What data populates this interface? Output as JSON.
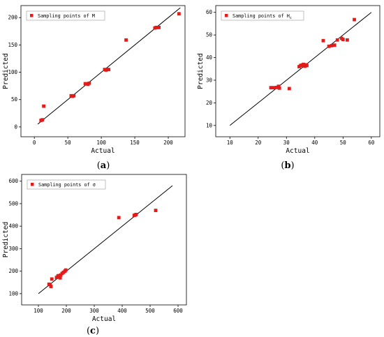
{
  "chart_data": [
    {
      "type": "scatter",
      "panel_label": "a",
      "xlabel": "Actual",
      "ylabel": "Predicted",
      "xlim": [
        -20,
        225
      ],
      "ylim": [
        -18,
        222
      ],
      "xticks": [
        0,
        50,
        100,
        150,
        200
      ],
      "yticks": [
        0,
        50,
        100,
        150,
        200
      ],
      "legend": {
        "text": "Sampling points of M",
        "position": "top-left"
      },
      "fit_line": [
        [
          5,
          5
        ],
        [
          218,
          218
        ]
      ],
      "series": [
        {
          "name": "Sampling points of M",
          "x": [
            10,
            12,
            14,
            55,
            57,
            59,
            76,
            78,
            80,
            82,
            105,
            107,
            109,
            111,
            137,
            180,
            182,
            184,
            186,
            216
          ],
          "y": [
            12,
            13,
            38,
            57,
            56,
            57,
            79,
            79,
            78,
            80,
            105,
            104,
            105,
            105,
            159,
            181,
            182,
            182,
            182,
            207
          ]
        }
      ]
    },
    {
      "type": "scatter",
      "panel_label": "b",
      "xlabel": "Actual",
      "ylabel": "Predicted",
      "xlim": [
        5,
        63
      ],
      "ylim": [
        5,
        63
      ],
      "xticks": [
        10,
        20,
        30,
        40,
        50,
        60
      ],
      "yticks": [
        10,
        20,
        30,
        40,
        50,
        60
      ],
      "legend": {
        "text": "Sampling points of H",
        "subscript": "c",
        "position": "top-left"
      },
      "fit_line": [
        [
          10,
          10
        ],
        [
          60,
          60
        ]
      ],
      "series": [
        {
          "name": "Sampling points of H",
          "x": [
            24.5,
            25.5,
            26.5,
            27.2,
            27.5,
            31,
            34.5,
            35,
            35.5,
            36,
            36.5,
            37,
            37.2,
            43,
            45,
            46,
            47,
            48,
            49.5,
            50,
            51.5,
            54
          ],
          "y": [
            26.7,
            26.7,
            26.8,
            27.3,
            26.5,
            26.3,
            36,
            36.5,
            36.7,
            37,
            36.2,
            36.8,
            36.5,
            47.5,
            45,
            45.3,
            45.5,
            47.8,
            48.5,
            48,
            47.8,
            56.8
          ]
        }
      ]
    },
    {
      "type": "scatter",
      "panel_label": "c",
      "xlabel": "Actual",
      "ylabel": "Predicted",
      "xlim": [
        40,
        630
      ],
      "ylim": [
        50,
        630
      ],
      "xticks": [
        100,
        200,
        300,
        400,
        500,
        600
      ],
      "yticks": [
        100,
        200,
        300,
        400,
        500,
        600
      ],
      "legend": {
        "text": "Sampling points of σ",
        "position": "top-left"
      },
      "fit_line": [
        [
          100,
          100
        ],
        [
          580,
          580
        ]
      ],
      "series": [
        {
          "name": "Sampling points of σ",
          "x": [
            138,
            142,
            145,
            148,
            165,
            170,
            172,
            175,
            178,
            180,
            185,
            190,
            195,
            198,
            388,
            443,
            447,
            450,
            520
          ],
          "y": [
            142,
            140,
            132,
            165,
            172,
            178,
            180,
            175,
            170,
            183,
            190,
            195,
            200,
            205,
            438,
            448,
            450,
            452,
            470
          ]
        }
      ]
    }
  ]
}
